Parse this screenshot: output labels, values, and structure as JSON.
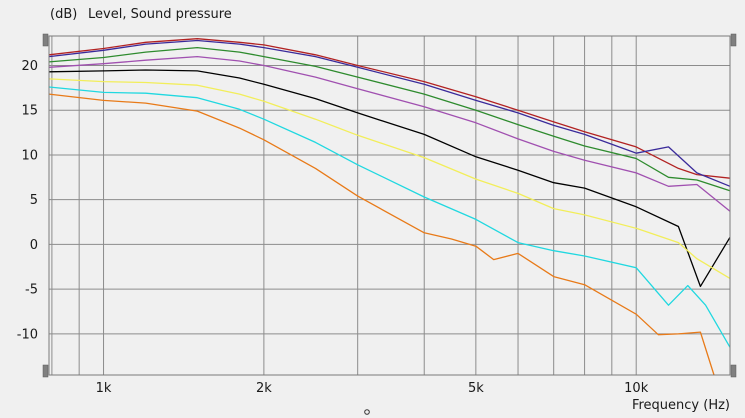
{
  "chart_data": {
    "type": "line",
    "title": "Level, Sound pressure",
    "y_unit": "(dB)",
    "xlabel": "Frequency (Hz)",
    "x_scale": "log",
    "x_range_hz": [
      790,
      15000
    ],
    "y_range_db": [
      -14.6,
      23.3
    ],
    "x_tick_labels": [
      {
        "value": 1000,
        "label": "1k"
      },
      {
        "value": 2000,
        "label": "2k"
      },
      {
        "value": 5000,
        "label": "5k"
      },
      {
        "value": 10000,
        "label": "10k"
      }
    ],
    "y_ticks": [
      20,
      15,
      10,
      5,
      0,
      -5,
      -10
    ],
    "grid": true,
    "background": "#f0f0f0",
    "grid_color": "#8c8c8c",
    "series": [
      {
        "color": "#b22222",
        "points": [
          [
            790,
            21.2
          ],
          [
            1000,
            21.9
          ],
          [
            1200,
            22.6
          ],
          [
            1500,
            23.0
          ],
          [
            1800,
            22.6
          ],
          [
            2000,
            22.3
          ],
          [
            2500,
            21.2
          ],
          [
            3000,
            20.0
          ],
          [
            4000,
            18.2
          ],
          [
            5000,
            16.5
          ],
          [
            6000,
            15.0
          ],
          [
            7000,
            13.7
          ],
          [
            8000,
            12.6
          ],
          [
            10000,
            10.9
          ],
          [
            12000,
            8.5
          ],
          [
            13000,
            7.8
          ],
          [
            15000,
            7.4
          ]
        ]
      },
      {
        "color": "#3a2a9a",
        "points": [
          [
            790,
            21.0
          ],
          [
            1000,
            21.7
          ],
          [
            1200,
            22.4
          ],
          [
            1500,
            22.8
          ],
          [
            1800,
            22.4
          ],
          [
            2000,
            22.0
          ],
          [
            2500,
            21.0
          ],
          [
            3000,
            19.8
          ],
          [
            4000,
            17.9
          ],
          [
            5000,
            16.1
          ],
          [
            6000,
            14.7
          ],
          [
            7000,
            13.3
          ],
          [
            8000,
            12.3
          ],
          [
            10000,
            10.2
          ],
          [
            11500,
            10.9
          ],
          [
            13000,
            8.0
          ],
          [
            15000,
            6.5
          ]
        ]
      },
      {
        "color": "#2e8b2e",
        "points": [
          [
            790,
            20.4
          ],
          [
            1000,
            20.9
          ],
          [
            1200,
            21.5
          ],
          [
            1500,
            22.0
          ],
          [
            1800,
            21.5
          ],
          [
            2000,
            21.0
          ],
          [
            2500,
            19.9
          ],
          [
            3000,
            18.7
          ],
          [
            4000,
            16.8
          ],
          [
            5000,
            15.0
          ],
          [
            6000,
            13.4
          ],
          [
            7000,
            12.1
          ],
          [
            8000,
            11.0
          ],
          [
            10000,
            9.6
          ],
          [
            11500,
            7.5
          ],
          [
            13000,
            7.2
          ],
          [
            15000,
            6.0
          ]
        ]
      },
      {
        "color": "#a050b0",
        "points": [
          [
            790,
            19.8
          ],
          [
            1000,
            20.2
          ],
          [
            1200,
            20.6
          ],
          [
            1500,
            21.0
          ],
          [
            1800,
            20.5
          ],
          [
            2000,
            20.0
          ],
          [
            2500,
            18.7
          ],
          [
            3000,
            17.4
          ],
          [
            4000,
            15.4
          ],
          [
            5000,
            13.6
          ],
          [
            6000,
            11.8
          ],
          [
            7000,
            10.4
          ],
          [
            8000,
            9.4
          ],
          [
            10000,
            8.0
          ],
          [
            11500,
            6.5
          ],
          [
            13000,
            6.7
          ],
          [
            15000,
            3.7
          ]
        ]
      },
      {
        "color": "#000000",
        "points": [
          [
            790,
            19.3
          ],
          [
            1000,
            19.4
          ],
          [
            1200,
            19.5
          ],
          [
            1500,
            19.4
          ],
          [
            1800,
            18.6
          ],
          [
            2000,
            17.9
          ],
          [
            2500,
            16.3
          ],
          [
            3000,
            14.7
          ],
          [
            4000,
            12.3
          ],
          [
            5000,
            9.8
          ],
          [
            6000,
            8.3
          ],
          [
            7000,
            6.9
          ],
          [
            8000,
            6.3
          ],
          [
            10000,
            4.2
          ],
          [
            12000,
            2.0
          ],
          [
            13200,
            -4.7
          ],
          [
            15000,
            0.8
          ]
        ]
      },
      {
        "color": "#f2ee5a",
        "points": [
          [
            790,
            18.5
          ],
          [
            1000,
            18.2
          ],
          [
            1200,
            18.1
          ],
          [
            1500,
            17.8
          ],
          [
            1800,
            16.8
          ],
          [
            2000,
            16.0
          ],
          [
            2500,
            14.0
          ],
          [
            3000,
            12.2
          ],
          [
            4000,
            9.7
          ],
          [
            5000,
            7.3
          ],
          [
            6000,
            5.7
          ],
          [
            7000,
            4.0
          ],
          [
            8000,
            3.3
          ],
          [
            10000,
            1.8
          ],
          [
            12000,
            0.2
          ],
          [
            13000,
            -1.6
          ],
          [
            15000,
            -3.8
          ]
        ]
      },
      {
        "color": "#20d8e0",
        "points": [
          [
            790,
            17.6
          ],
          [
            1000,
            17.0
          ],
          [
            1200,
            16.9
          ],
          [
            1500,
            16.4
          ],
          [
            1800,
            15.1
          ],
          [
            2000,
            14.0
          ],
          [
            2500,
            11.4
          ],
          [
            3000,
            8.9
          ],
          [
            4000,
            5.3
          ],
          [
            5000,
            2.8
          ],
          [
            6000,
            0.2
          ],
          [
            7000,
            -0.7
          ],
          [
            8000,
            -1.3
          ],
          [
            10000,
            -2.6
          ],
          [
            11500,
            -6.8
          ],
          [
            12500,
            -4.6
          ],
          [
            13500,
            -6.8
          ],
          [
            15000,
            -11.5
          ]
        ]
      },
      {
        "color": "#e87a18",
        "points": [
          [
            790,
            16.8
          ],
          [
            1000,
            16.1
          ],
          [
            1200,
            15.8
          ],
          [
            1500,
            14.9
          ],
          [
            1800,
            13.0
          ],
          [
            2000,
            11.7
          ],
          [
            2500,
            8.5
          ],
          [
            3000,
            5.4
          ],
          [
            4000,
            1.3
          ],
          [
            4500,
            0.6
          ],
          [
            5000,
            -0.2
          ],
          [
            5400,
            -1.7
          ],
          [
            6000,
            -1.0
          ],
          [
            7000,
            -3.6
          ],
          [
            8000,
            -4.5
          ],
          [
            10000,
            -7.8
          ],
          [
            11000,
            -10.1
          ],
          [
            12000,
            -10.0
          ],
          [
            13200,
            -9.8
          ],
          [
            14000,
            -14.6
          ]
        ]
      }
    ]
  }
}
